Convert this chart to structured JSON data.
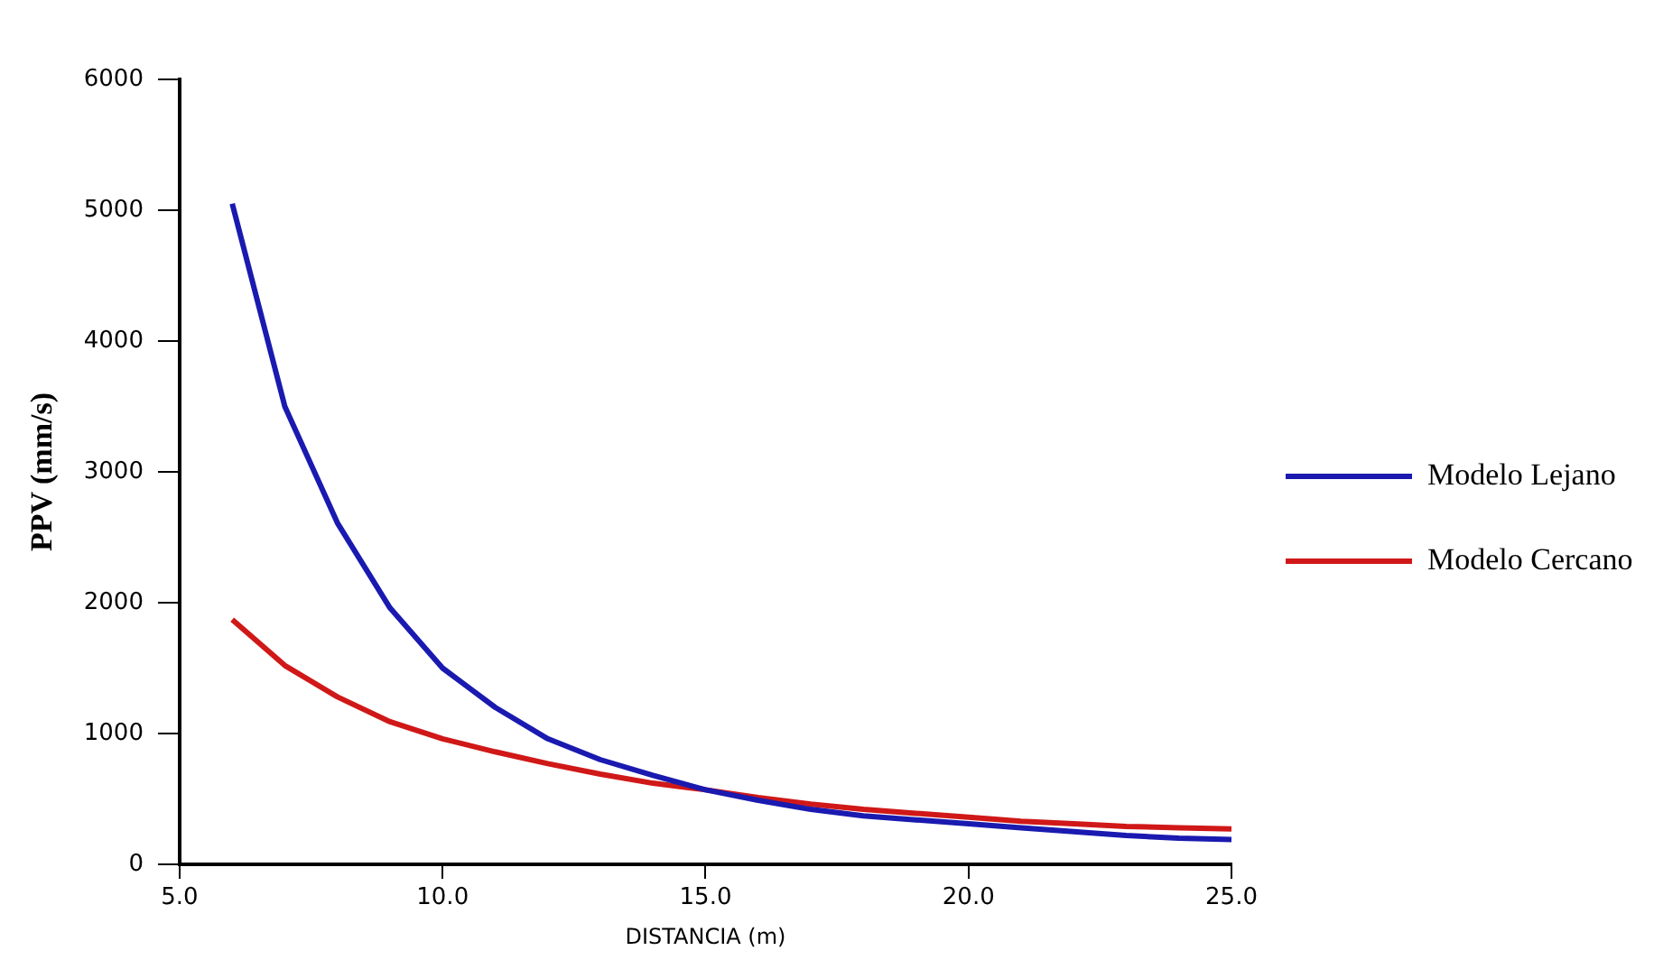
{
  "chart_data": {
    "type": "line",
    "xlabel": "DISTANCIA (m)",
    "ylabel": "PPV (mm/s)",
    "x": [
      6,
      7,
      8,
      9,
      10,
      11,
      12,
      13,
      14,
      15,
      16,
      17,
      18,
      19,
      20,
      21,
      22,
      23,
      24,
      25
    ],
    "series": [
      {
        "name": "Modelo Lejano",
        "color": "#1a1ab0",
        "values": [
          5050,
          3500,
          2610,
          1960,
          1500,
          1200,
          960,
          800,
          680,
          570,
          490,
          420,
          370,
          340,
          310,
          280,
          250,
          220,
          200,
          190
        ]
      },
      {
        "name": "Modelo Cercano",
        "color": "#d01818",
        "values": [
          1870,
          1520,
          1280,
          1090,
          960,
          860,
          770,
          690,
          620,
          570,
          510,
          460,
          420,
          390,
          360,
          330,
          310,
          290,
          280,
          270
        ]
      }
    ],
    "xlim": [
      5,
      25
    ],
    "xticks": [
      {
        "value": 5,
        "label": "5.0"
      },
      {
        "value": 10,
        "label": "10.0"
      },
      {
        "value": 15,
        "label": "15.0"
      },
      {
        "value": 20,
        "label": "20.0"
      },
      {
        "value": 25,
        "label": "25.0"
      }
    ],
    "ylim": [
      0,
      6000
    ],
    "yticks": [
      0,
      1000,
      2000,
      3000,
      4000,
      5000,
      6000
    ],
    "grid": false,
    "legend": "right",
    "marker": "none",
    "line_style": "solid"
  }
}
